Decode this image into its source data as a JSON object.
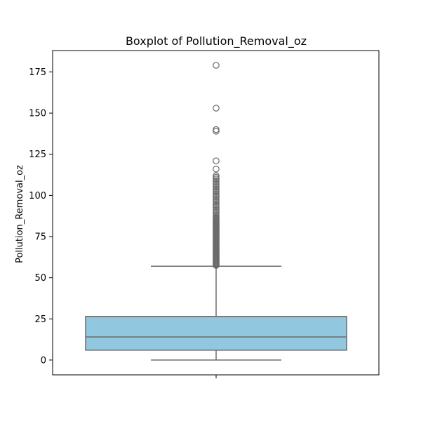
{
  "chart_data": {
    "type": "box",
    "title": "Boxplot of Pollution_Removal_oz",
    "xlabel": "",
    "ylabel": "Pollution_Removal_oz",
    "ylim": [
      -9,
      188
    ],
    "yticks": [
      0,
      25,
      50,
      75,
      100,
      125,
      150,
      175
    ],
    "grid": false,
    "colors": {
      "box_fill": "#92c7e0",
      "line": "#6b6b6b",
      "axis": "#000000"
    },
    "box": {
      "whisker_low": 0,
      "q1": 6,
      "median": 14,
      "q3": 26.5,
      "whisker_high": 57,
      "outliers": [
        57.5,
        58,
        58.5,
        59,
        59.5,
        60,
        60.5,
        61,
        61.5,
        62,
        62.5,
        63,
        63.5,
        64,
        64.5,
        65,
        65.5,
        66,
        66.5,
        67,
        67.5,
        68,
        68.5,
        69,
        69.5,
        70,
        70.5,
        71,
        71.5,
        72,
        72.5,
        73,
        73.5,
        74,
        74.5,
        75,
        75.5,
        76,
        76.5,
        77,
        77.5,
        78,
        78.5,
        79,
        79.5,
        80,
        80.5,
        81,
        81.5,
        82,
        82.5,
        83,
        83.5,
        84,
        84.5,
        85,
        85.5,
        86,
        86.5,
        87,
        88,
        89,
        90,
        91,
        92,
        93,
        94,
        95,
        96,
        97,
        98,
        99,
        100,
        101,
        102,
        103,
        104,
        105,
        106,
        107,
        108,
        109,
        110,
        111,
        112,
        116,
        121,
        139,
        140,
        153,
        179
      ]
    }
  }
}
